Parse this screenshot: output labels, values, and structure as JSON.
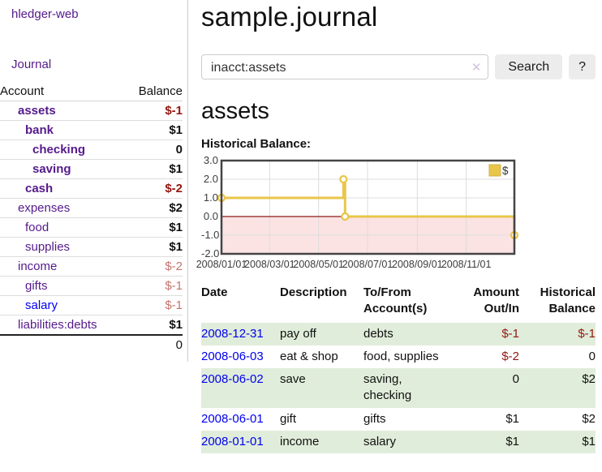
{
  "sidebar": {
    "app_title": "hledger-web",
    "nav": {
      "journal_label": "Journal"
    },
    "accounts_table": {
      "headers": {
        "account": "Account",
        "balance": "Balance"
      },
      "rows": [
        {
          "name": "assets",
          "indent": 1,
          "bold": true,
          "balance": "$-1",
          "balance_style": "neg-strong"
        },
        {
          "name": "bank",
          "indent": 2,
          "bold": true,
          "balance": "$1",
          "balance_style": ""
        },
        {
          "name": "checking",
          "indent": 3,
          "bold": true,
          "balance": "0",
          "balance_style": ""
        },
        {
          "name": "saving",
          "indent": 3,
          "bold": true,
          "balance": "$1",
          "balance_style": ""
        },
        {
          "name": "cash",
          "indent": 2,
          "bold": true,
          "balance": "$-2",
          "balance_style": "neg-strong"
        },
        {
          "name": "expenses",
          "indent": 1,
          "bold": false,
          "balance": "$2",
          "balance_style": ""
        },
        {
          "name": "food",
          "indent": 2,
          "bold": false,
          "balance": "$1",
          "balance_style": ""
        },
        {
          "name": "supplies",
          "indent": 2,
          "bold": false,
          "balance": "$1",
          "balance_style": ""
        },
        {
          "name": "income",
          "indent": 1,
          "bold": false,
          "balance": "$-2",
          "balance_style": "neg-soft"
        },
        {
          "name": "gifts",
          "indent": 2,
          "bold": false,
          "balance": "$-1",
          "balance_style": "neg-soft"
        },
        {
          "name": "salary",
          "indent": 2,
          "bold": false,
          "balance": "$-1",
          "balance_style": "neg-soft",
          "link_style": "unvisited"
        },
        {
          "name": "liabilities:debts",
          "indent": 1,
          "bold": false,
          "balance": "$1",
          "balance_style": ""
        }
      ],
      "total": "0"
    }
  },
  "main": {
    "title": "sample.journal",
    "search": {
      "value": "inacct:assets",
      "clear_icon": "✕",
      "button_label": "Search",
      "help_label": "?"
    },
    "account_heading": "assets",
    "chart_label": "Historical Balance:"
  },
  "chart_data": {
    "type": "line",
    "step": true,
    "title": "Historical Balance",
    "series": [
      {
        "name": "$",
        "color": "#e9c64a",
        "points": [
          {
            "date": "2008-01-01",
            "value": 1
          },
          {
            "date": "2008-06-01",
            "value": 2
          },
          {
            "date": "2008-06-03",
            "value": 0
          },
          {
            "date": "2008-12-31",
            "value": -1
          }
        ]
      }
    ],
    "ylim": [
      -2,
      3
    ],
    "yticks": [
      "3.0",
      "2.0",
      "1.0",
      "0.0",
      "-1.0",
      "-2.0"
    ],
    "xticks": [
      "2008/01/01",
      "2008/03/01",
      "2008/05/01",
      "2008/07/01",
      "2008/09/01",
      "2008/11/01"
    ],
    "grid": true,
    "legend_position": "top-right",
    "negative_region_color": "#fbe3e3",
    "zero_line_color": "#8b1a1a"
  },
  "register": {
    "headers": {
      "date": "Date",
      "sort_icon": "∧",
      "description": "Description",
      "accounts": "To/From Account(s)",
      "amount": "Amount Out/In",
      "balance": "Historical Balance"
    },
    "rows": [
      {
        "date": "2008-12-31",
        "description": "pay off",
        "accounts": "debts",
        "amount": "$-1",
        "amount_style": "neg",
        "balance": "$-1",
        "balance_style": "neg",
        "shaded": true
      },
      {
        "date": "2008-06-03",
        "description": "eat & shop",
        "accounts": "food, supplies",
        "amount": "$-2",
        "amount_style": "neg",
        "balance": "0",
        "balance_style": "",
        "shaded": false
      },
      {
        "date": "2008-06-02",
        "description": "save",
        "accounts": "saving, checking",
        "amount": "0",
        "amount_style": "",
        "balance": "$2",
        "balance_style": "",
        "shaded": true
      },
      {
        "date": "2008-06-01",
        "description": "gift",
        "accounts": "gifts",
        "amount": "$1",
        "amount_style": "",
        "balance": "$2",
        "balance_style": "",
        "shaded": false
      },
      {
        "date": "2008-01-01",
        "description": "income",
        "accounts": "salary",
        "amount": "$1",
        "amount_style": "",
        "balance": "$1",
        "balance_style": "",
        "shaded": true
      }
    ]
  },
  "colors": {
    "accent_purple": "#551a8b",
    "link_blue": "#0000ee",
    "negative_red": "#941710",
    "negative_soft_red": "#c4736d",
    "row_stripe_green": "#e0edda",
    "chart_line_gold": "#e9c64a",
    "chart_negative_region_pink": "#fbe3e3",
    "chart_zero_line_red": "#8b1a1a"
  }
}
